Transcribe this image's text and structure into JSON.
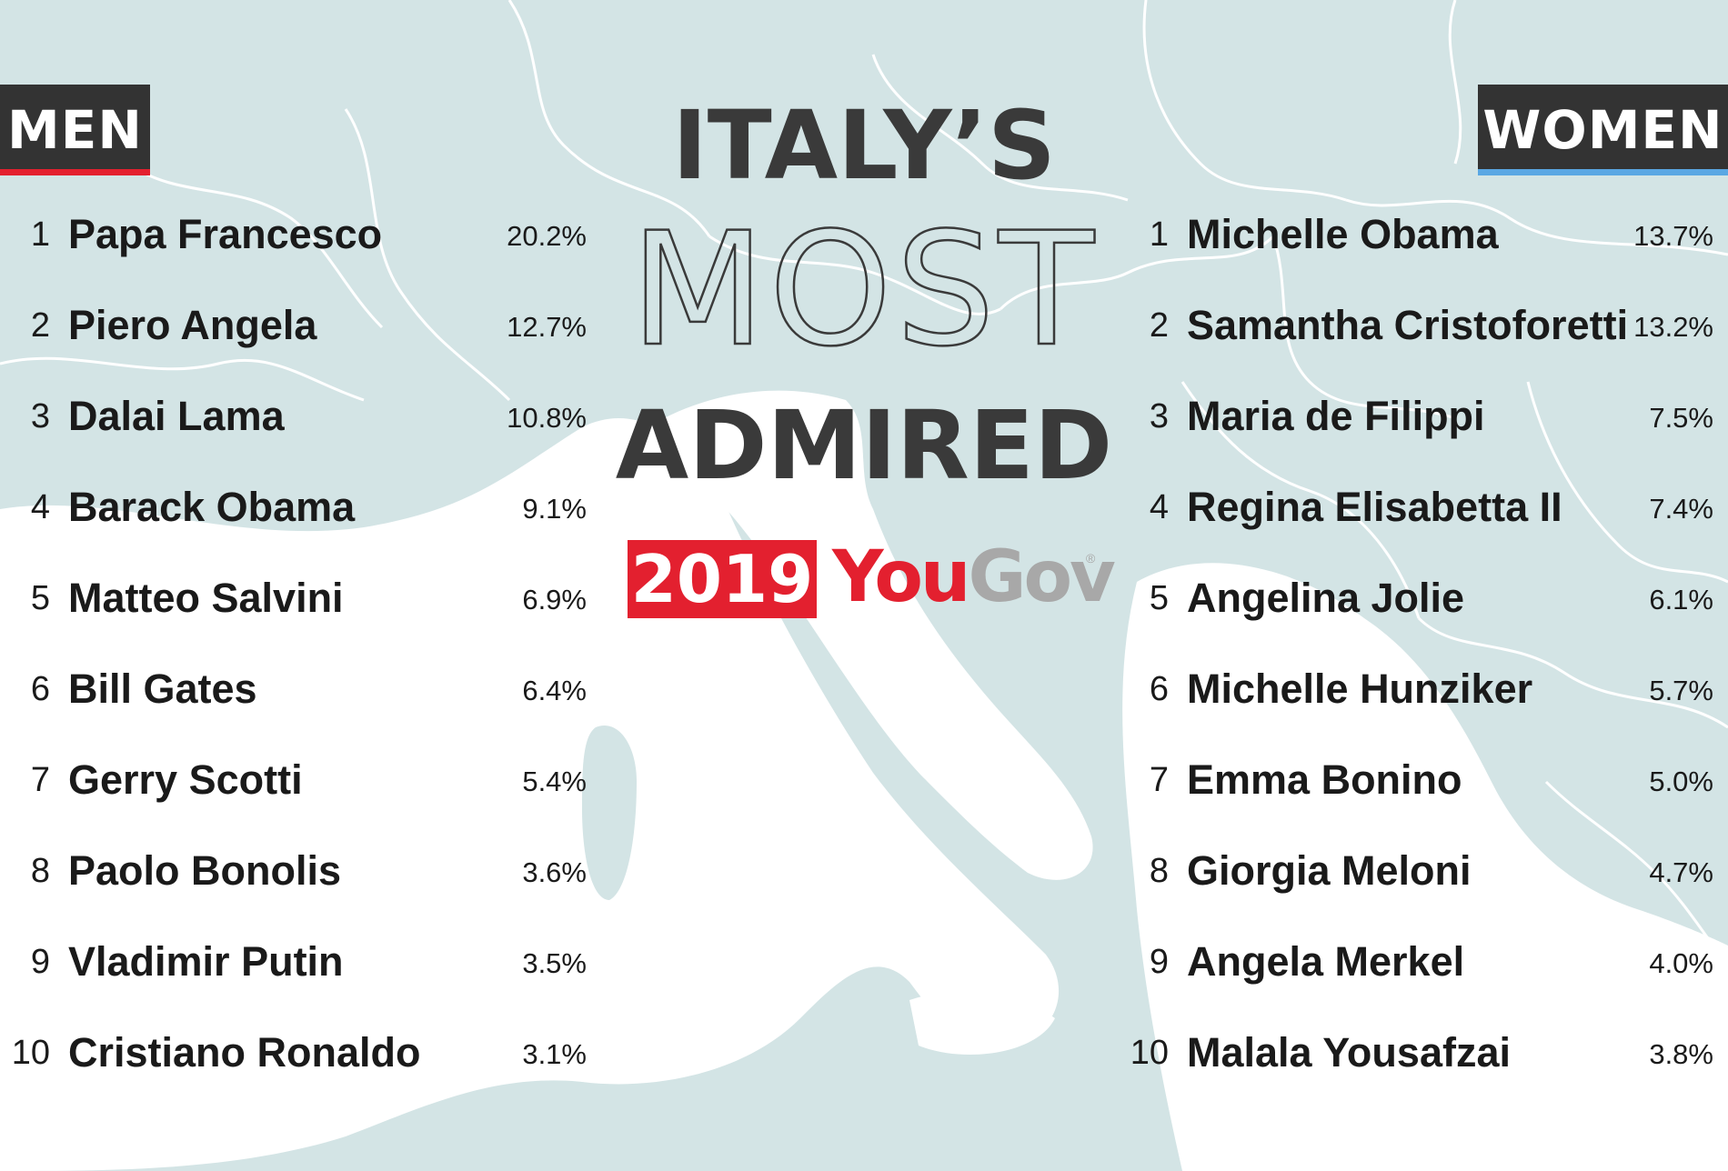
{
  "colors": {
    "sea": "#d3e4e5",
    "land": "#ffffff",
    "header_bg": "#333333",
    "men_accent": "#e3202f",
    "women_accent": "#5aa7e3",
    "yougov_red": "#e3202f",
    "yougov_grey": "#a8a8a8"
  },
  "title": {
    "line1": "ITALY’S",
    "line2": "MOST",
    "line3": "ADMIRED",
    "year": "2019",
    "brand_you": "You",
    "brand_gov": "Gov",
    "brand_mark": "®"
  },
  "men": {
    "header": "MEN",
    "items": [
      {
        "rank": "1",
        "name": "Papa Francesco",
        "pct": "20.2%"
      },
      {
        "rank": "2",
        "name": "Piero Angela",
        "pct": "12.7%"
      },
      {
        "rank": "3",
        "name": "Dalai Lama",
        "pct": "10.8%"
      },
      {
        "rank": "4",
        "name": "Barack Obama",
        "pct": "9.1%"
      },
      {
        "rank": "5",
        "name": "Matteo Salvini",
        "pct": "6.9%"
      },
      {
        "rank": "6",
        "name": "Bill Gates",
        "pct": "6.4%"
      },
      {
        "rank": "7",
        "name": "Gerry Scotti",
        "pct": "5.4%"
      },
      {
        "rank": "8",
        "name": "Paolo Bonolis",
        "pct": "3.6%"
      },
      {
        "rank": "9",
        "name": "Vladimir Putin",
        "pct": "3.5%"
      },
      {
        "rank": "10",
        "name": "Cristiano Ronaldo",
        "pct": "3.1%"
      }
    ]
  },
  "women": {
    "header": "WOMEN",
    "items": [
      {
        "rank": "1",
        "name": "Michelle Obama",
        "pct": "13.7%"
      },
      {
        "rank": "2",
        "name": "Samantha Cristoforetti",
        "pct": "13.2%"
      },
      {
        "rank": "3",
        "name": "Maria de Filippi",
        "pct": "7.5%"
      },
      {
        "rank": "4",
        "name": "Regina Elisabetta II",
        "pct": "7.4%"
      },
      {
        "rank": "5",
        "name": "Angelina Jolie",
        "pct": "6.1%"
      },
      {
        "rank": "6",
        "name": "Michelle Hunziker",
        "pct": "5.7%"
      },
      {
        "rank": "7",
        "name": "Emma Bonino",
        "pct": "5.0%"
      },
      {
        "rank": "8",
        "name": "Giorgia Meloni",
        "pct": "4.7%"
      },
      {
        "rank": "9",
        "name": "Angela Merkel",
        "pct": "4.0%"
      },
      {
        "rank": "10",
        "name": "Malala Yousafzai",
        "pct": "3.8%"
      }
    ]
  }
}
